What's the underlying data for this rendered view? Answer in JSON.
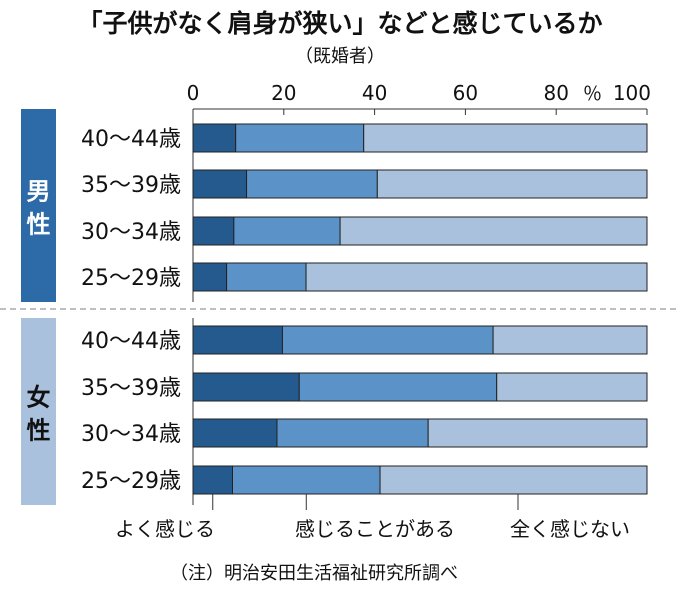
{
  "chart_data": {
    "type": "bar",
    "orientation": "horizontal",
    "stacked": true,
    "title": "「子供がなく肩身が狭い」などと感じているか",
    "subtitle": "（既婚者）",
    "unit_label": "％",
    "xlim": [
      0,
      100
    ],
    "x_ticks": [
      "0",
      "20",
      "40",
      "60",
      "80",
      "100"
    ],
    "grid": false,
    "legend_position": "bottom",
    "groups": [
      {
        "name": "男性",
        "color": "#2d6aa8",
        "text_color": "#ffffff",
        "categories": [
          "40～44歳",
          "35～39歳",
          "30～34歳",
          "25～29歳"
        ]
      },
      {
        "name": "女性",
        "color": "#a9c1dc",
        "text_color": "#111111",
        "categories": [
          "40～44歳",
          "35～39歳",
          "30～34歳",
          "25～29歳"
        ]
      }
    ],
    "series": [
      {
        "name": "よく感じる",
        "color": "#245a8e",
        "values": [
          9.4,
          11.8,
          9.0,
          7.4,
          19.7,
          23.4,
          18.5,
          8.7
        ]
      },
      {
        "name": "感じることがある",
        "color": "#5b93c8",
        "values": [
          28.2,
          28.8,
          23.4,
          17.5,
          46.4,
          43.5,
          33.3,
          32.5
        ]
      },
      {
        "name": "全く感じない",
        "color": "#a9c1dc",
        "values": [
          62.4,
          59.4,
          67.6,
          75.1,
          33.9,
          33.1,
          48.2,
          58.8
        ]
      }
    ],
    "note": "（注）明治安田生活福祉研究所調べ"
  }
}
